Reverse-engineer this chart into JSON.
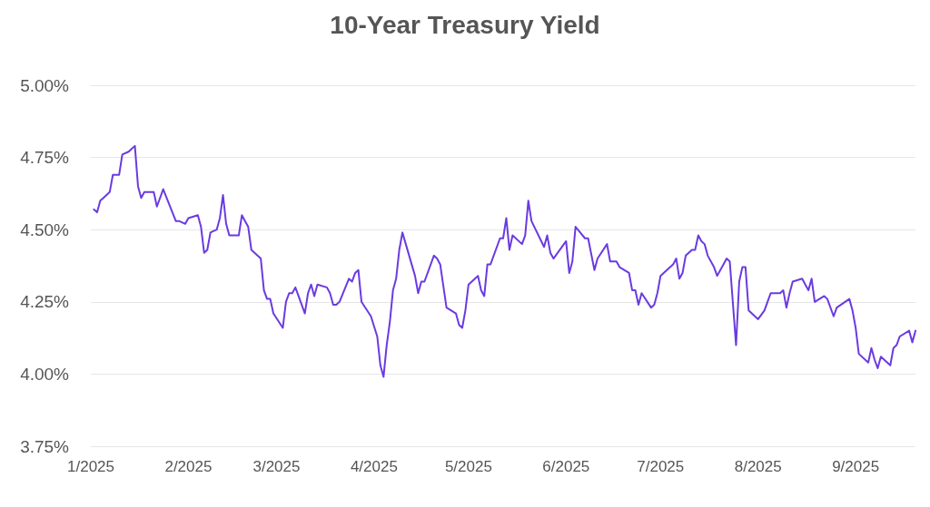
{
  "chart_data": {
    "type": "line",
    "title": "10-Year Treasury Yield",
    "x": [
      "2025-01-02",
      "2025-01-03",
      "2025-01-04",
      "2025-01-05",
      "2025-01-07",
      "2025-01-08",
      "2025-01-09",
      "2025-01-10",
      "2025-01-11",
      "2025-01-13",
      "2025-01-15",
      "2025-01-16",
      "2025-01-17",
      "2025-01-18",
      "2025-01-21",
      "2025-01-22",
      "2025-01-24",
      "2025-01-28",
      "2025-01-29",
      "2025-01-31",
      "2025-02-01",
      "2025-02-04",
      "2025-02-05",
      "2025-02-06",
      "2025-02-07",
      "2025-02-08",
      "2025-02-10",
      "2025-02-11",
      "2025-02-12",
      "2025-02-13",
      "2025-02-14",
      "2025-02-17",
      "2025-02-18",
      "2025-02-19",
      "2025-02-20",
      "2025-02-21",
      "2025-02-24",
      "2025-02-25",
      "2025-02-26",
      "2025-02-27",
      "2025-02-28",
      "2025-03-03",
      "2025-03-04",
      "2025-03-05",
      "2025-03-06",
      "2025-03-07",
      "2025-03-10",
      "2025-03-11",
      "2025-03-12",
      "2025-03-13",
      "2025-03-14",
      "2025-03-17",
      "2025-03-18",
      "2025-03-19",
      "2025-03-20",
      "2025-03-21",
      "2025-03-24",
      "2025-03-25",
      "2025-03-26",
      "2025-03-27",
      "2025-03-28",
      "2025-03-31",
      "2025-04-02",
      "2025-04-03",
      "2025-04-04",
      "2025-04-05",
      "2025-04-06",
      "2025-04-07",
      "2025-04-08",
      "2025-04-09",
      "2025-04-10",
      "2025-04-14",
      "2025-04-15",
      "2025-04-16",
      "2025-04-17",
      "2025-04-20",
      "2025-04-21",
      "2025-04-22",
      "2025-04-24",
      "2025-04-27",
      "2025-04-28",
      "2025-04-29",
      "2025-04-30",
      "2025-05-01",
      "2025-05-04",
      "2025-05-05",
      "2025-05-06",
      "2025-05-07",
      "2025-05-08",
      "2025-05-11",
      "2025-05-12",
      "2025-05-13",
      "2025-05-14",
      "2025-05-15",
      "2025-05-18",
      "2025-05-19",
      "2025-05-20",
      "2025-05-21",
      "2025-05-25",
      "2025-05-26",
      "2025-05-27",
      "2025-05-28",
      "2025-06-01",
      "2025-06-02",
      "2025-06-03",
      "2025-06-04",
      "2025-06-07",
      "2025-06-08",
      "2025-06-10",
      "2025-06-11",
      "2025-06-14",
      "2025-06-15",
      "2025-06-17",
      "2025-06-18",
      "2025-06-21",
      "2025-06-22",
      "2025-06-23",
      "2025-06-24",
      "2025-06-25",
      "2025-06-28",
      "2025-06-29",
      "2025-06-30",
      "2025-07-01",
      "2025-07-02",
      "2025-07-05",
      "2025-07-06",
      "2025-07-07",
      "2025-07-08",
      "2025-07-09",
      "2025-07-11",
      "2025-07-12",
      "2025-07-13",
      "2025-07-14",
      "2025-07-15",
      "2025-07-16",
      "2025-07-18",
      "2025-07-19",
      "2025-07-21",
      "2025-07-22",
      "2025-07-23",
      "2025-07-25",
      "2025-07-26",
      "2025-07-27",
      "2025-07-28",
      "2025-07-29",
      "2025-08-01",
      "2025-08-03",
      "2025-08-04",
      "2025-08-05",
      "2025-08-08",
      "2025-08-09",
      "2025-08-10",
      "2025-08-11",
      "2025-08-12",
      "2025-08-15",
      "2025-08-16",
      "2025-08-17",
      "2025-08-18",
      "2025-08-19",
      "2025-08-22",
      "2025-08-23",
      "2025-08-25",
      "2025-08-26",
      "2025-08-30",
      "2025-08-31",
      "2025-09-01",
      "2025-09-02",
      "2025-09-05",
      "2025-09-06",
      "2025-09-07",
      "2025-09-08",
      "2025-09-09",
      "2025-09-12",
      "2025-09-13",
      "2025-09-14",
      "2025-09-15",
      "2025-09-18",
      "2025-09-19",
      "2025-09-20"
    ],
    "values": [
      4.57,
      4.56,
      4.6,
      4.61,
      4.63,
      4.69,
      4.69,
      4.69,
      4.76,
      4.77,
      4.79,
      4.65,
      4.61,
      4.63,
      4.63,
      4.58,
      4.64,
      4.53,
      4.53,
      4.52,
      4.54,
      4.55,
      4.51,
      4.42,
      4.43,
      4.49,
      4.5,
      4.54,
      4.62,
      4.52,
      4.48,
      4.48,
      4.55,
      4.53,
      4.51,
      4.43,
      4.4,
      4.29,
      4.26,
      4.26,
      4.21,
      4.16,
      4.25,
      4.28,
      4.28,
      4.3,
      4.21,
      4.28,
      4.31,
      4.27,
      4.31,
      4.3,
      4.28,
      4.24,
      4.24,
      4.25,
      4.33,
      4.32,
      4.35,
      4.36,
      4.25,
      4.2,
      4.13,
      4.03,
      3.99,
      4.1,
      4.18,
      4.29,
      4.33,
      4.43,
      4.49,
      4.34,
      4.28,
      4.32,
      4.32,
      4.41,
      4.4,
      4.38,
      4.23,
      4.21,
      4.17,
      4.16,
      4.22,
      4.31,
      4.34,
      4.29,
      4.27,
      4.38,
      4.38,
      4.47,
      4.47,
      4.54,
      4.43,
      4.48,
      4.45,
      4.48,
      4.6,
      4.53,
      4.44,
      4.48,
      4.42,
      4.4,
      4.46,
      4.35,
      4.39,
      4.51,
      4.47,
      4.47,
      4.36,
      4.4,
      4.45,
      4.39,
      4.39,
      4.37,
      4.35,
      4.29,
      4.29,
      4.24,
      4.28,
      4.23,
      4.24,
      4.28,
      4.34,
      4.35,
      4.38,
      4.4,
      4.33,
      4.35,
      4.41,
      4.43,
      4.43,
      4.48,
      4.46,
      4.45,
      4.41,
      4.37,
      4.34,
      4.38,
      4.4,
      4.39,
      4.1,
      4.32,
      4.37,
      4.37,
      4.22,
      4.19,
      4.22,
      4.25,
      4.28,
      4.28,
      4.29,
      4.23,
      4.28,
      4.32,
      4.33,
      4.31,
      4.29,
      4.33,
      4.25,
      4.27,
      4.26,
      4.2,
      4.23,
      4.26,
      4.22,
      4.16,
      4.07,
      4.04,
      4.09,
      4.05,
      4.02,
      4.06,
      4.03,
      4.09,
      4.1,
      4.13,
      4.15,
      4.11,
      4.15
    ],
    "color": "#6a3be0",
    "xlim": [
      "2025-01-01",
      "2025-09-20"
    ],
    "xticks": [
      {
        "value": "2025-01-01",
        "label": "1/2025"
      },
      {
        "value": "2025-02-01",
        "label": "2/2025"
      },
      {
        "value": "2025-03-01",
        "label": "3/2025"
      },
      {
        "value": "2025-04-01",
        "label": "4/2025"
      },
      {
        "value": "2025-05-01",
        "label": "5/2025"
      },
      {
        "value": "2025-06-01",
        "label": "6/2025"
      },
      {
        "value": "2025-07-01",
        "label": "7/2025"
      },
      {
        "value": "2025-08-01",
        "label": "8/2025"
      },
      {
        "value": "2025-09-01",
        "label": "9/2025"
      }
    ],
    "ylim": [
      3.75,
      5.0
    ],
    "yticks": [
      {
        "value": 3.75,
        "label": "3.75%"
      },
      {
        "value": 4.0,
        "label": "4.00%"
      },
      {
        "value": 4.25,
        "label": "4.25%"
      },
      {
        "value": 4.5,
        "label": "4.50%"
      },
      {
        "value": 4.75,
        "label": "4.75%"
      },
      {
        "value": 5.0,
        "label": "5.00%"
      }
    ],
    "grid": "y",
    "marker": "none",
    "line_style": "solid"
  }
}
